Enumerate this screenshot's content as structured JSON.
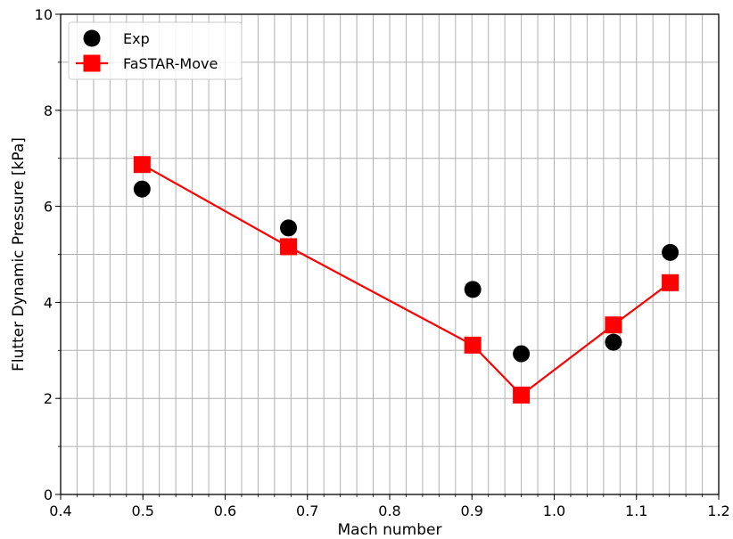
{
  "chart_data": {
    "type": "scatter",
    "title": "",
    "xlabel": "Mach number",
    "ylabel": "Flutter Dynamic Pressure [kPa]",
    "xlim": [
      0.4,
      1.2
    ],
    "ylim": [
      0,
      10
    ],
    "xticks": [
      0.4,
      0.5,
      0.6,
      0.7,
      0.8,
      0.9,
      1.0,
      1.1,
      1.2
    ],
    "xtick_labels": [
      "0.4",
      "0.5",
      "0.6",
      "0.7",
      "0.8",
      "0.9",
      "1.0",
      "1.1",
      "1.2"
    ],
    "yticks": [
      0,
      2,
      4,
      6,
      8,
      10
    ],
    "ytick_labels": [
      "0",
      "2",
      "4",
      "6",
      "8",
      "10"
    ],
    "x_minor_step": 0.02,
    "y_minor_step": 1,
    "grid": true,
    "legend_position": "top-left",
    "series": [
      {
        "name": "Exp",
        "style": "markers",
        "marker": "circle",
        "color": "#000000",
        "x": [
          0.499,
          0.677,
          0.901,
          0.96,
          1.072,
          1.141
        ],
        "y": [
          6.36,
          5.55,
          4.27,
          2.93,
          3.17,
          5.04
        ]
      },
      {
        "name": "FaSTAR-Move",
        "style": "line+markers",
        "marker": "square",
        "color": "#ff0000",
        "x": [
          0.499,
          0.677,
          0.901,
          0.96,
          1.072,
          1.141
        ],
        "y": [
          6.87,
          5.16,
          3.11,
          2.07,
          3.53,
          4.41
        ]
      }
    ]
  }
}
